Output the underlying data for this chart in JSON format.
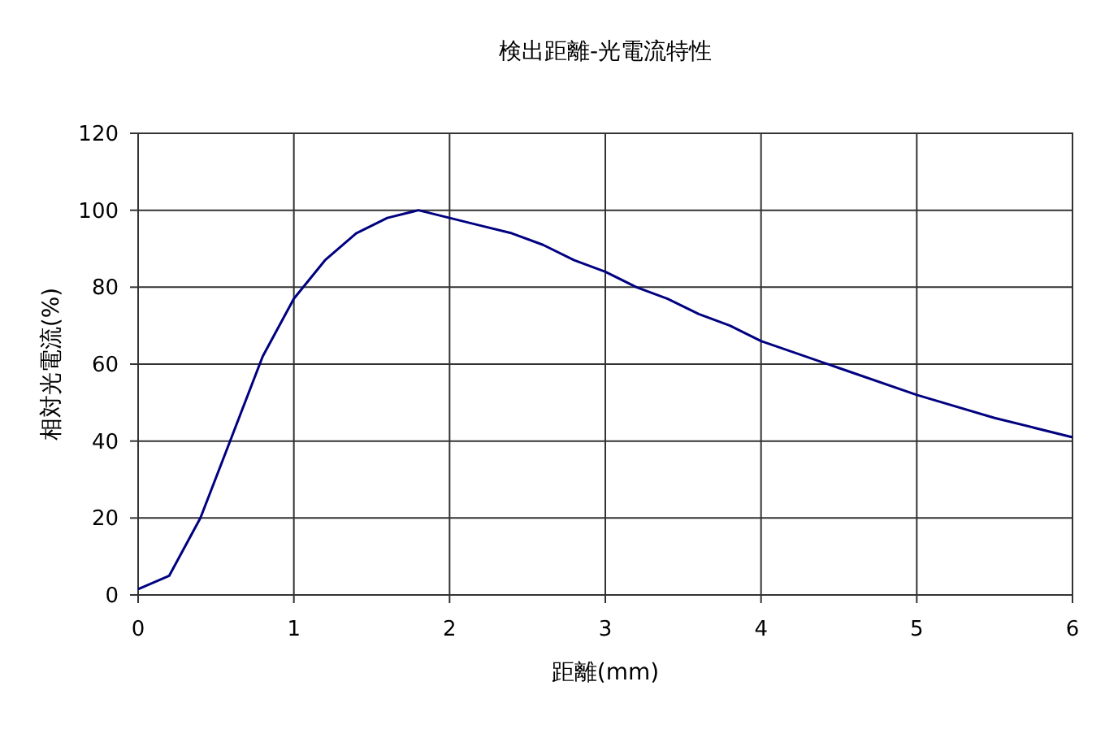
{
  "chart_data": {
    "type": "line",
    "title": "検出距離-光電流特性",
    "xlabel": "距離(mm)",
    "ylabel": "相対光電流(%)",
    "x": [
      0,
      0.2,
      0.4,
      0.6,
      0.8,
      1.0,
      1.2,
      1.4,
      1.6,
      1.8,
      2.0,
      2.2,
      2.4,
      2.6,
      2.8,
      3.0,
      3.2,
      3.4,
      3.6,
      3.8,
      4.0,
      4.5,
      5.0,
      5.5,
      6.0
    ],
    "series": [
      {
        "color": "#000080",
        "values": [
          1.5,
          5,
          20,
          41,
          62,
          77,
          87,
          94,
          98,
          100,
          98,
          96,
          94,
          91,
          87,
          84,
          80,
          77,
          73,
          70,
          66,
          59,
          52,
          46,
          41
        ]
      }
    ],
    "xlim": [
      0,
      6
    ],
    "xticks": [
      0,
      1,
      2,
      3,
      4,
      5,
      6
    ],
    "ylim": [
      0,
      120
    ],
    "yticks": [
      0,
      20,
      40,
      60,
      80,
      100,
      120
    ],
    "grid": true,
    "marker": "none",
    "line_style": "solid"
  }
}
